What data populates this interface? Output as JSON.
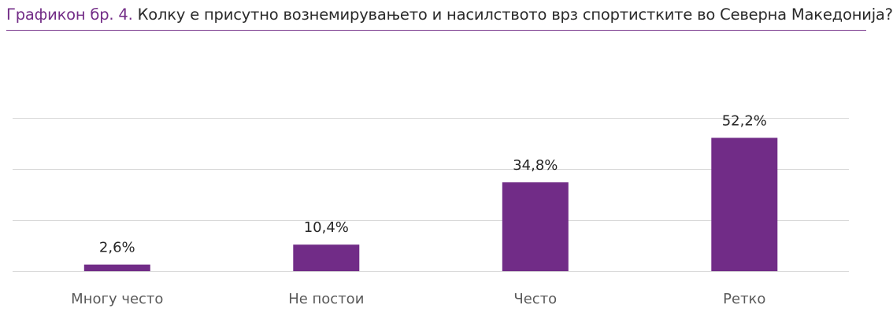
{
  "header": {
    "prefix": "Графикон бр. 4.",
    "question": "Колку е присутно вознемирувањето и насилството врз спортистките во Северна Македонија?"
  },
  "colors": {
    "bar": "#712c87",
    "accent": "#732d87",
    "gridline": "#d9d9d9",
    "label": "#262626",
    "category_label": "#595959"
  },
  "chart_data": {
    "type": "bar",
    "title": "Графикон бр. 4. Колку е присутно вознемирувањето и насилството врз спортистките во Северна Македонија?",
    "categories": [
      "Многу често",
      "Не постои",
      "Често",
      "Ретко"
    ],
    "values": [
      2.6,
      10.4,
      34.8,
      52.2
    ],
    "value_labels": [
      "2,6%",
      "10,4%",
      "34,8%",
      "52,2%"
    ],
    "unit": "%",
    "xlabel": "",
    "ylabel": "",
    "ylim": [
      0,
      60
    ],
    "grid": true,
    "legend": "none"
  }
}
